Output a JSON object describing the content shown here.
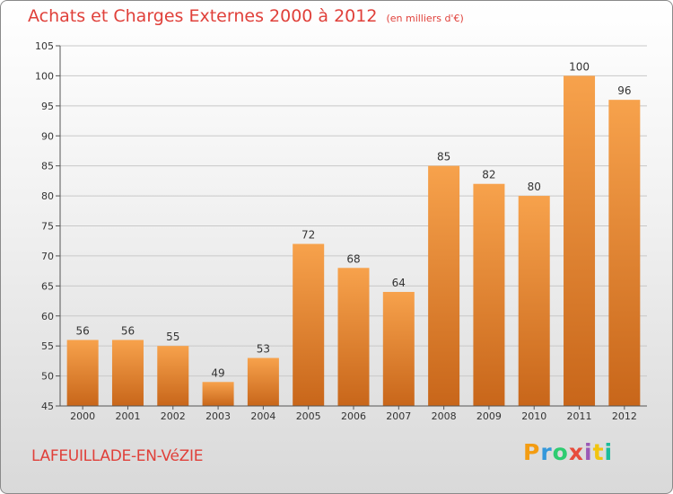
{
  "title": "Achats et Charges Externes 2000 à 2012",
  "subtitle": "(en milliers d'€)",
  "commune": "LAFEUILLADE-EN-VéZIE",
  "logo": {
    "letters": [
      "P",
      "r",
      "o",
      "x",
      "i",
      "t",
      "i"
    ],
    "colors": [
      "#f39c12",
      "#3498db",
      "#2ecc71",
      "#e74c3c",
      "#9b59b6",
      "#f1c40f",
      "#1abc9c"
    ]
  },
  "colors": {
    "bar_top": "#f7a24c",
    "bar_bottom": "#c8661a",
    "grid": "#c8c8c8",
    "title": "#e0403a"
  },
  "chart_data": {
    "type": "bar",
    "title": "Achats et Charges Externes 2000 à 2012",
    "subtitle": "(en milliers d'€)",
    "categories": [
      "2000",
      "2001",
      "2002",
      "2003",
      "2004",
      "2005",
      "2006",
      "2007",
      "2008",
      "2009",
      "2010",
      "2011",
      "2012"
    ],
    "values": [
      56,
      56,
      55,
      49,
      53,
      72,
      68,
      64,
      85,
      82,
      80,
      100,
      96
    ],
    "xlabel": "",
    "ylabel": "",
    "ylim": [
      45,
      105
    ],
    "yticks": [
      45,
      50,
      55,
      60,
      65,
      70,
      75,
      80,
      85,
      90,
      95,
      100,
      105
    ],
    "grid": true,
    "legend": "none"
  }
}
